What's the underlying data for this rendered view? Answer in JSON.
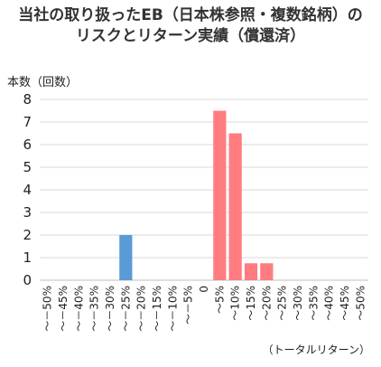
{
  "chart_data": {
    "type": "bar",
    "title": "当社の取り扱ったEB（日本株参照・複数銘柄）の\nリスクとリターン実績（償還済）",
    "ylabel": "本数（回数）",
    "xlabel": "（トータルリターン）",
    "ylim": [
      0,
      8
    ],
    "yticks": [
      0,
      1,
      2,
      3,
      4,
      5,
      6,
      7,
      8
    ],
    "grid": true,
    "legend": "none",
    "categories": [
      "～－50%",
      "～－45%",
      "～－40%",
      "～－35%",
      "～－30%",
      "～－25%",
      "～－20%",
      "～－15%",
      "～－10%",
      "～－5%",
      "0",
      "～5%",
      "～10%",
      "～15%",
      "～20%",
      "～25%",
      "～30%",
      "～35%",
      "～40%",
      "～45%",
      "～50%"
    ],
    "values": [
      0,
      0,
      0,
      0,
      0,
      2,
      0,
      0,
      0,
      0,
      0,
      7.5,
      6.5,
      0.75,
      0.75,
      0,
      0,
      0,
      0,
      0,
      0
    ],
    "colors": {
      "negative": "#5b9bd5",
      "positive": "#ff7c80",
      "grid": "#d9d9d9",
      "axis": "#bfbfbf"
    }
  }
}
